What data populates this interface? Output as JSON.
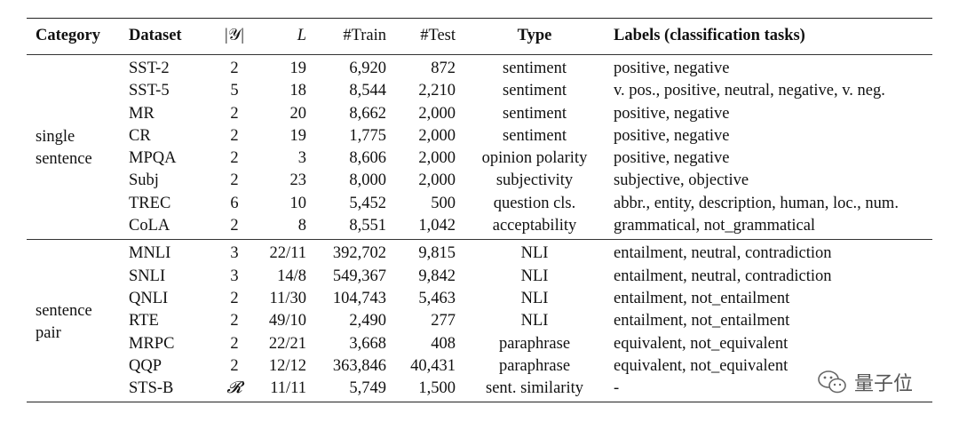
{
  "header": {
    "category": "Category",
    "dataset": "Dataset",
    "num_labels": "|𝒴|",
    "length": "L",
    "train": "#Train",
    "test": "#Test",
    "type": "Type",
    "labels": "Labels (classification tasks)"
  },
  "groups": [
    {
      "category_line1": "single",
      "category_line2": "sentence",
      "rows": [
        {
          "dataset": "SST-2",
          "y": "2",
          "l": "19",
          "train": "6,920",
          "test": "872",
          "type": "sentiment",
          "labels": "positive, negative"
        },
        {
          "dataset": "SST-5",
          "y": "5",
          "l": "18",
          "train": "8,544",
          "test": "2,210",
          "type": "sentiment",
          "labels": "v. pos., positive, neutral, negative, v. neg."
        },
        {
          "dataset": "MR",
          "y": "2",
          "l": "20",
          "train": "8,662",
          "test": "2,000",
          "type": "sentiment",
          "labels": "positive, negative"
        },
        {
          "dataset": "CR",
          "y": "2",
          "l": "19",
          "train": "1,775",
          "test": "2,000",
          "type": "sentiment",
          "labels": "positive, negative"
        },
        {
          "dataset": "MPQA",
          "y": "2",
          "l": "3",
          "train": "8,606",
          "test": "2,000",
          "type": "opinion polarity",
          "labels": "positive, negative"
        },
        {
          "dataset": "Subj",
          "y": "2",
          "l": "23",
          "train": "8,000",
          "test": "2,000",
          "type": "subjectivity",
          "labels": "subjective, objective"
        },
        {
          "dataset": "TREC",
          "y": "6",
          "l": "10",
          "train": "5,452",
          "test": "500",
          "type": "question cls.",
          "labels": "abbr., entity, description, human, loc., num."
        },
        {
          "dataset": "CoLA",
          "y": "2",
          "l": "8",
          "train": "8,551",
          "test": "1,042",
          "type": "acceptability",
          "labels": "grammatical, not_grammatical"
        }
      ]
    },
    {
      "category_line1": "sentence",
      "category_line2": "pair",
      "rows": [
        {
          "dataset": "MNLI",
          "y": "3",
          "l": "22/11",
          "train": "392,702",
          "test": "9,815",
          "type": "NLI",
          "labels": "entailment, neutral, contradiction"
        },
        {
          "dataset": "SNLI",
          "y": "3",
          "l": "14/8",
          "train": "549,367",
          "test": "9,842",
          "type": "NLI",
          "labels": "entailment, neutral, contradiction"
        },
        {
          "dataset": "QNLI",
          "y": "2",
          "l": "11/30",
          "train": "104,743",
          "test": "5,463",
          "type": "NLI",
          "labels": "entailment, not_entailment"
        },
        {
          "dataset": "RTE",
          "y": "2",
          "l": "49/10",
          "train": "2,490",
          "test": "277",
          "type": "NLI",
          "labels": "entailment, not_entailment"
        },
        {
          "dataset": "MRPC",
          "y": "2",
          "l": "22/21",
          "train": "3,668",
          "test": "408",
          "type": "paraphrase",
          "labels": "equivalent, not_equivalent"
        },
        {
          "dataset": "QQP",
          "y": "2",
          "l": "12/12",
          "train": "363,846",
          "test": "40,431",
          "type": "paraphrase",
          "labels": "equivalent, not_equivalent"
        },
        {
          "dataset": "STS-B",
          "y": "𝓡",
          "l": "11/11",
          "train": "5,749",
          "test": "1,500",
          "type": "sent. similarity",
          "labels": "-"
        }
      ]
    }
  ],
  "watermark": {
    "text": "量子位",
    "icon": "wechat-icon"
  }
}
